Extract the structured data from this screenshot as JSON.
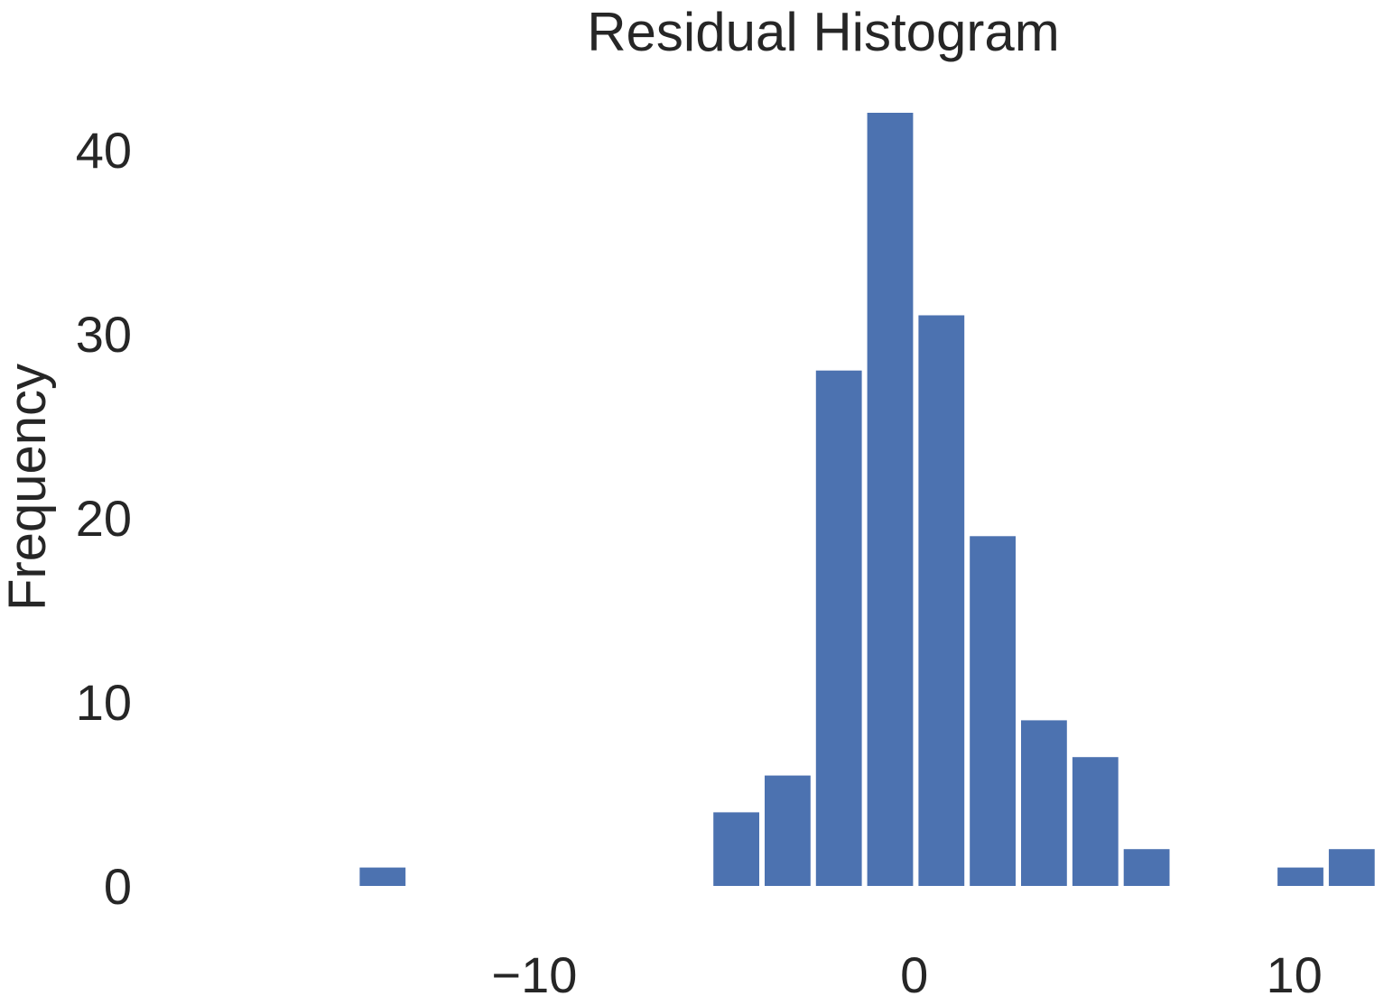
{
  "chart_data": {
    "type": "bar",
    "title": "Residual Histogram",
    "xlabel": "",
    "ylabel": "Frequency",
    "xlim": [
      -20.5,
      12.6
    ],
    "ylim": [
      0,
      42
    ],
    "grid": false,
    "bar_color": "#4c72b0",
    "bin_width": 1.35,
    "x_ticks": [
      -10,
      0,
      10
    ],
    "x_tick_labels": [
      "−10",
      "0",
      "10"
    ],
    "y_ticks": [
      0,
      10,
      20,
      30,
      40
    ],
    "y_tick_labels": [
      "0",
      "10",
      "20",
      "30",
      "40"
    ],
    "bins": [
      {
        "x0": -14.67,
        "x1": -13.32,
        "count": 1
      },
      {
        "x0": -5.36,
        "x1": -4.01,
        "count": 4
      },
      {
        "x0": -4.01,
        "x1": -2.66,
        "count": 6
      },
      {
        "x0": -2.66,
        "x1": -1.31,
        "count": 28
      },
      {
        "x0": -1.31,
        "x1": 0.04,
        "count": 42
      },
      {
        "x0": 0.04,
        "x1": 1.39,
        "count": 31
      },
      {
        "x0": 1.39,
        "x1": 2.74,
        "count": 19
      },
      {
        "x0": 2.74,
        "x1": 4.09,
        "count": 9
      },
      {
        "x0": 4.09,
        "x1": 5.44,
        "count": 7
      },
      {
        "x0": 5.44,
        "x1": 6.79,
        "count": 2
      },
      {
        "x0": 9.49,
        "x1": 10.84,
        "count": 1
      },
      {
        "x0": 10.84,
        "x1": 12.19,
        "count": 2
      }
    ]
  }
}
